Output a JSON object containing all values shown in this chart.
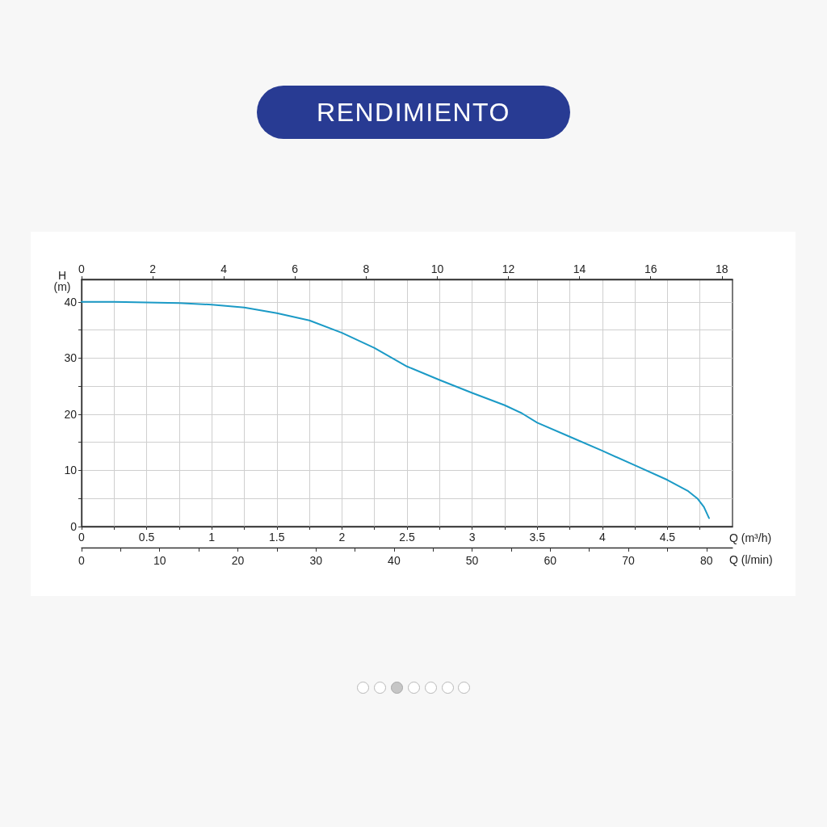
{
  "chart_data": {
    "type": "line",
    "title": "RENDIMIENTO",
    "xlabel": "Q (m³/h)",
    "ylabel": "H (m)",
    "x": [
      0,
      0.25,
      0.5,
      0.75,
      1,
      1.25,
      1.5,
      1.75,
      2,
      2.25,
      2.5,
      2.75,
      3,
      3.25,
      3.38,
      3.5,
      3.75,
      4,
      4.25,
      4.5,
      4.66,
      4.73,
      4.78,
      4.82
    ],
    "series": [
      {
        "color": "#1b9ac6",
        "values": [
          40,
          40,
          39.9,
          39.8,
          39.5,
          39,
          38,
          36.7,
          34.5,
          31.8,
          28.5,
          26.1,
          23.8,
          21.6,
          20.2,
          18.5,
          16,
          13.5,
          10.9,
          8.3,
          6.3,
          5,
          3.5,
          1.5
        ]
      }
    ],
    "xlim": [
      0,
      5
    ],
    "xticks": [
      0,
      {
        "value": 0.25,
        "label": null
      },
      0.5,
      {
        "value": 0.75,
        "label": null
      },
      1,
      {
        "value": 1.25,
        "label": null
      },
      1.5,
      {
        "value": 1.75,
        "label": null
      },
      2,
      {
        "value": 2.25,
        "label": null
      },
      2.5,
      {
        "value": 2.75,
        "label": null
      },
      3,
      {
        "value": 3.25,
        "label": null
      },
      3.5,
      {
        "value": 3.75,
        "label": null
      },
      4,
      {
        "value": 4.25,
        "label": null
      },
      4.5,
      {
        "value": 4.75,
        "label": null
      }
    ],
    "x2lim": [
      0,
      18.3
    ],
    "x2ticks": [
      0,
      2,
      4,
      6,
      8,
      10,
      12,
      14,
      16,
      18
    ],
    "ylim": [
      0,
      44
    ],
    "yticks": [
      0,
      {
        "value": 5,
        "label": null
      },
      10,
      {
        "value": 15,
        "label": null
      },
      20,
      {
        "value": 25,
        "label": null
      },
      30,
      {
        "value": 35,
        "label": null
      },
      40
    ],
    "annotations": [
      "0",
      "10",
      "20",
      "30",
      "40",
      "50",
      "60",
      "70",
      "80",
      "Q (l/min)"
    ],
    "grid": true,
    "marker": "none",
    "line_style": "solid"
  }
}
